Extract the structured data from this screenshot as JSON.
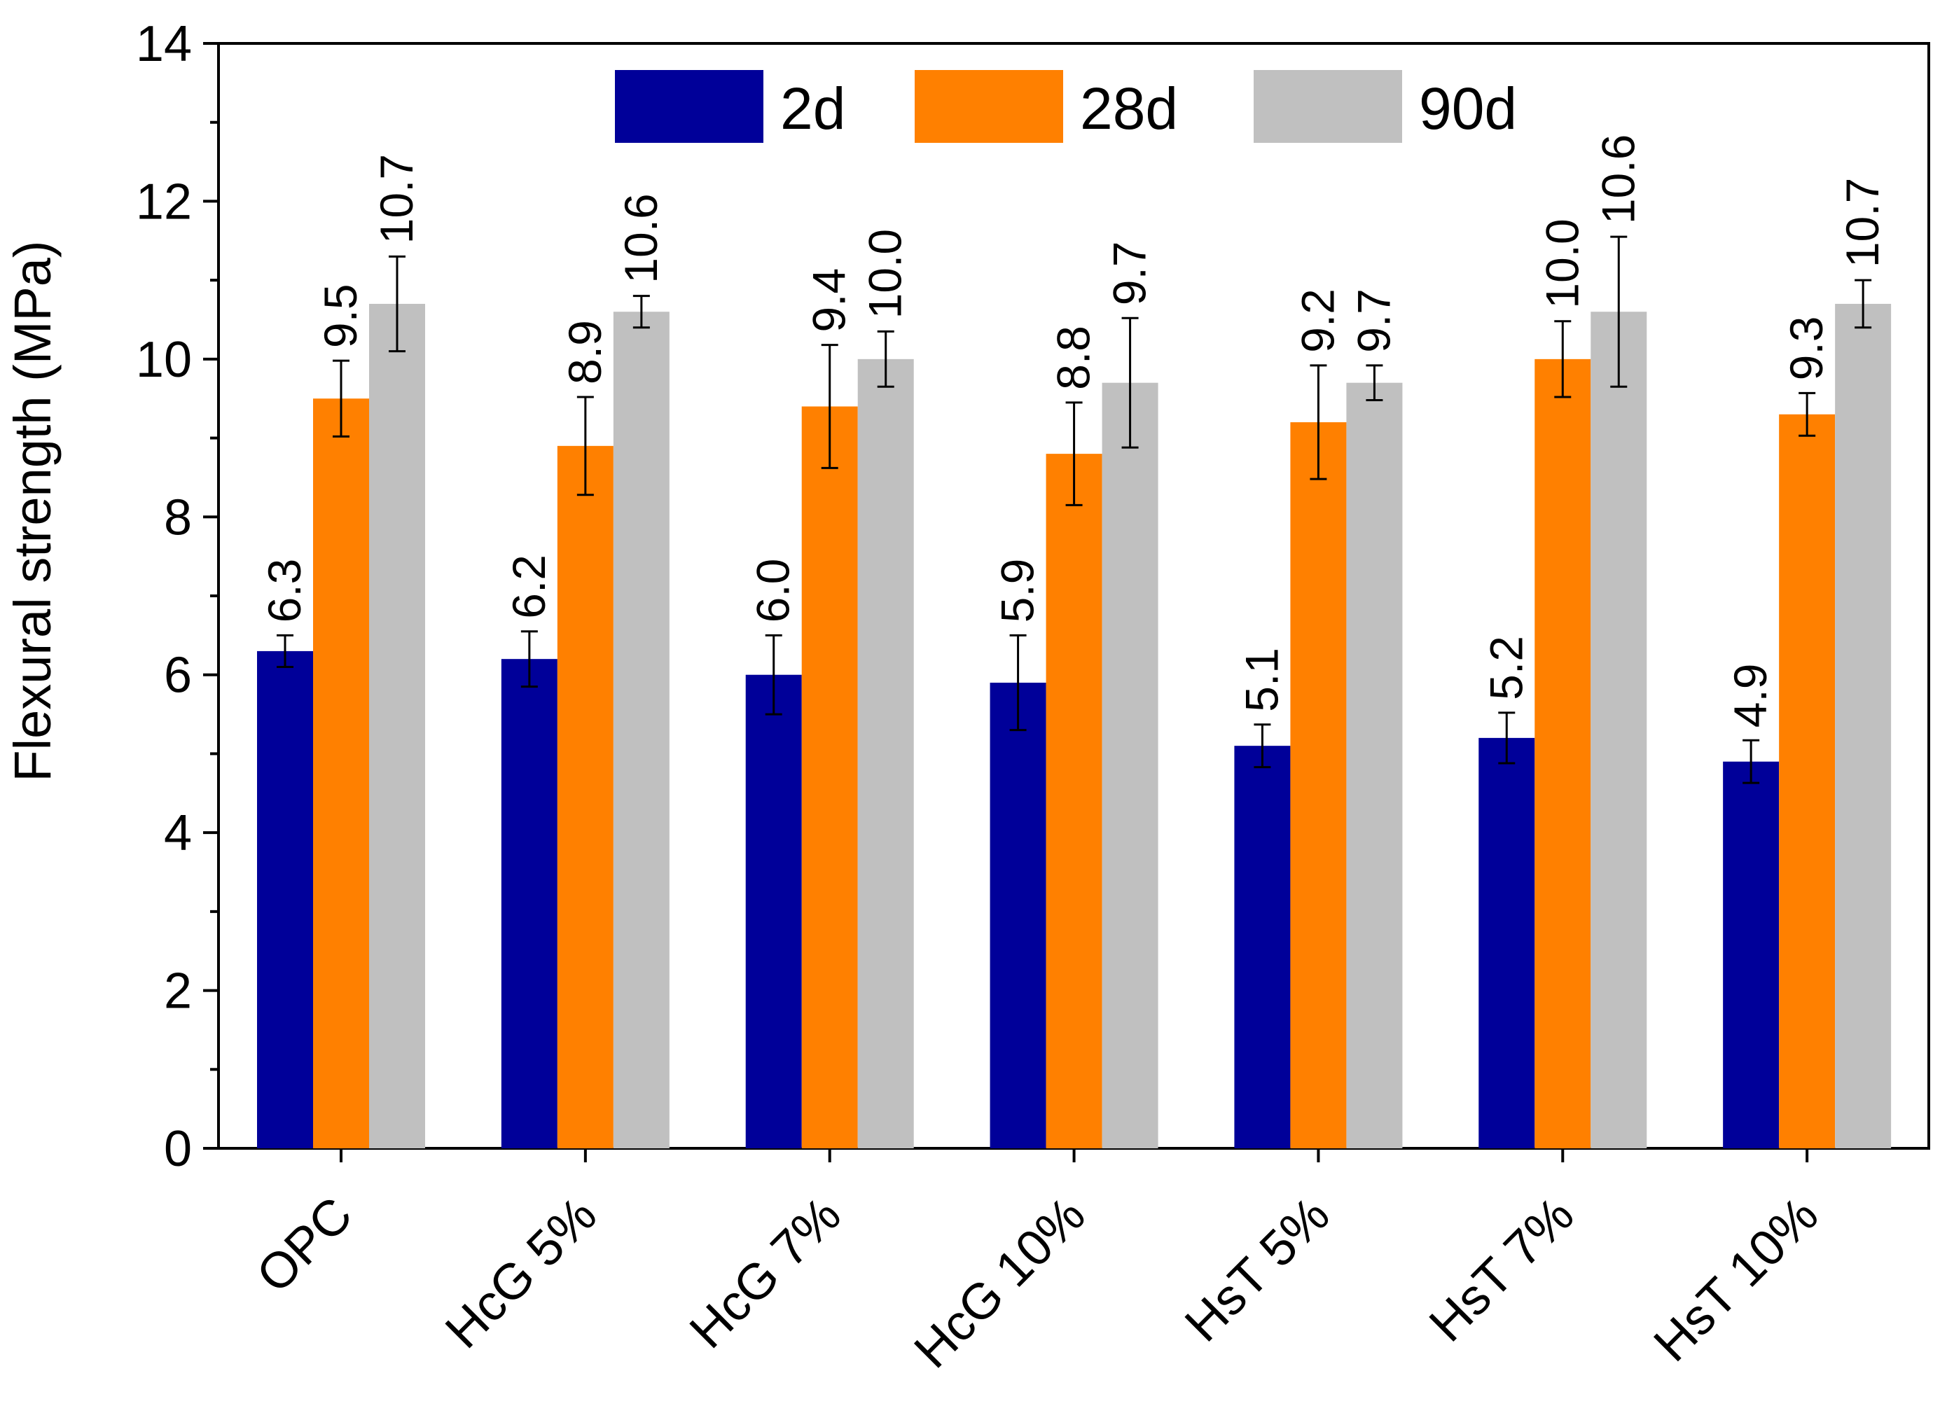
{
  "chart_data": {
    "type": "bar",
    "title": "",
    "xlabel": "",
    "ylabel": "Flexural strength (MPa)",
    "ylim": [
      0,
      14
    ],
    "yticks": [
      0,
      2,
      4,
      6,
      8,
      10,
      12,
      14
    ],
    "grid": false,
    "legend_position": "top",
    "categories": [
      "OPC",
      "HcG 5%",
      "HcG 7%",
      "HcG 10%",
      "HsT 5%",
      "HsT 7%",
      "HsT 10%"
    ],
    "series": [
      {
        "name": "2d",
        "color": "#000099",
        "values": [
          6.3,
          6.2,
          6.0,
          5.9,
          5.1,
          5.2,
          4.9
        ],
        "labels": [
          "6.3",
          "6.2",
          "6.0",
          "5.9",
          "5.1",
          "5.2",
          "4.9"
        ],
        "errors": [
          0.2,
          0.35,
          0.5,
          0.6,
          0.27,
          0.32,
          0.27
        ]
      },
      {
        "name": "28d",
        "color": "#ff8000",
        "values": [
          9.5,
          8.9,
          9.4,
          8.8,
          9.2,
          10.0,
          9.3
        ],
        "labels": [
          "9.5",
          "8.9",
          "9.4",
          "8.8",
          "9.2",
          "10.0",
          "9.3"
        ],
        "errors": [
          0.48,
          0.62,
          0.78,
          0.65,
          0.72,
          0.48,
          0.27
        ]
      },
      {
        "name": "90d",
        "color": "#c0c0c0",
        "values": [
          10.7,
          10.6,
          10.0,
          9.7,
          9.7,
          10.6,
          10.7
        ],
        "labels": [
          "10.7",
          "10.6",
          "10.0",
          "9.7",
          "9.7",
          "10.6",
          "10.7"
        ],
        "errors": [
          0.6,
          0.2,
          0.35,
          0.82,
          0.22,
          0.95,
          0.3
        ]
      }
    ]
  }
}
